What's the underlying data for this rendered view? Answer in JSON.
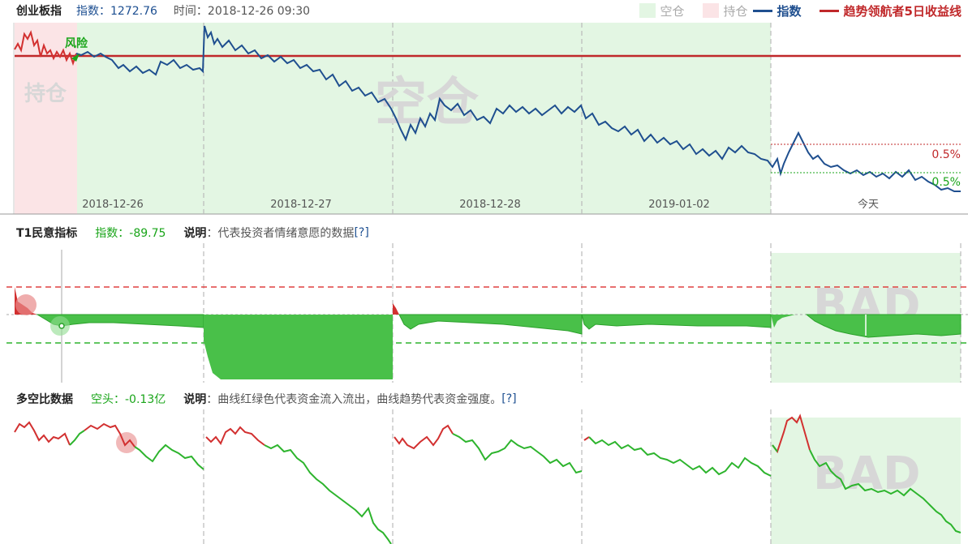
{
  "panel1": {
    "title": "创业板指",
    "index_label": "指数：1272.76",
    "time_label": "时间：2018-12-26 09:30",
    "legend": {
      "empty": "空仓",
      "hold": "持仓",
      "index": "指数",
      "income": "趋势领航者5日收益线"
    },
    "watermark_hold": "持仓",
    "watermark_empty": "空仓",
    "risk_label": "风险",
    "dates": [
      "2018-12-26",
      "2018-12-27",
      "2018-12-28",
      "2019-01-02",
      "今天"
    ],
    "pct_upper": "0.5%",
    "pct_lower": "0.5%"
  },
  "panel2": {
    "title": "T1民意指标",
    "index_label": "指数：-89.75",
    "desc_key": "说明",
    "desc": "：代表投资者情绪意愿的数据",
    "link": "[?]",
    "watermark": "BAD"
  },
  "panel3": {
    "title": "多空比数据",
    "index_label": "空头：-0.13亿",
    "desc_key": "说明",
    "desc": "：曲线红绿色代表资金流入流出，曲线趋势代表资金强度。",
    "link": "[?]",
    "watermark": "BAD"
  },
  "colors": {
    "empty_bg": "#e3f6e3",
    "hold_bg": "#fbe4e6",
    "index_line": "#1f4f8f",
    "income_line": "#c0282a",
    "green": "#2db42d",
    "red": "#d23030"
  }
}
